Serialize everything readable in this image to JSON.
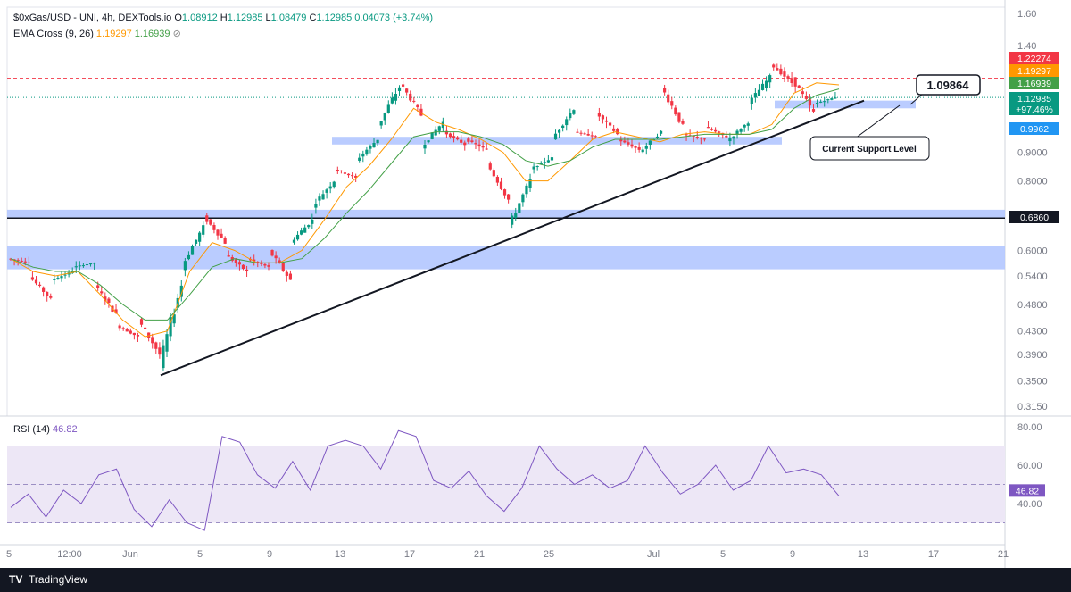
{
  "header": {
    "symbol": "$0xGas/USD - UNI, 4h, DEXTools.io",
    "o_label": "O",
    "o_value": "1.08912",
    "h_label": "H",
    "h_value": "1.12985",
    "l_label": "L",
    "l_value": "1.08479",
    "c_label": "C",
    "c_value": "1.12985",
    "change": "0.04073 (+3.74%)",
    "ema_label": "EMA Cross (9, 26)",
    "ema_fast": "1.19297",
    "ema_slow": "1.16939",
    "ema_icon": "⊘"
  },
  "rsi_header": {
    "label": "RSI (14)",
    "value": "46.82"
  },
  "annotations": {
    "callout_value": "1.09864",
    "support_label": "Current Support Level"
  },
  "footer": {
    "logo": "TV",
    "name": "TradingView"
  },
  "colors": {
    "up": "#089981",
    "down": "#f23645",
    "ema_fast": "#ff9800",
    "ema_slow": "#43a047",
    "zone": "#b3c7ff",
    "rsi": "#7e57c2",
    "rsi_band": "#ede7f6"
  },
  "chart_data": {
    "type": "candlestick",
    "price_axis_labels": [
      "1.60",
      "1.40",
      "0.9000",
      "0.8000",
      "0.6000",
      "0.5400",
      "0.4800",
      "0.4300",
      "0.3900",
      "0.3500",
      "0.3150"
    ],
    "price_badges": [
      {
        "value": "1.22274",
        "color": "#f23645"
      },
      {
        "value": "1.19297",
        "color": "#ff9800"
      },
      {
        "value": "1.16939",
        "color": "#43a047"
      },
      {
        "value": "1.12985",
        "color": "#089981"
      },
      {
        "value": "+97.46%",
        "color": "#089981"
      },
      {
        "value": "0.9962",
        "color": "#2196f3"
      },
      {
        "value": "0.6860",
        "color": "#131722"
      }
    ],
    "time_axis_labels": [
      "5",
      "12:00",
      "Jun",
      "5",
      "9",
      "13",
      "17",
      "21",
      "25",
      "Jul",
      "5",
      "9",
      "13",
      "17",
      "21"
    ],
    "rsi_axis_labels": [
      "80.00",
      "60.00",
      "40.00"
    ],
    "rsi_current_badge": "46.82",
    "rsi_levels": [
      70,
      50,
      30
    ],
    "support_zones": [
      {
        "low": 0.555,
        "high": 0.612
      },
      {
        "low": 0.686,
        "high": 0.71
      },
      {
        "low": 0.93,
        "high": 0.96
      },
      {
        "low": 1.08,
        "high": 1.115
      }
    ],
    "resistance_line": 1.22274,
    "current_price_line": 1.12985,
    "horizontal_level": 0.686,
    "trendline": {
      "start": {
        "x": "Jun 3",
        "y": 0.358
      },
      "end": {
        "x": "Jul 12",
        "y": 1.115
      }
    },
    "price_path": [
      [
        0.58,
        0.57
      ],
      [
        0.54,
        0.49
      ],
      [
        0.53,
        0.55
      ],
      [
        0.56,
        0.57
      ],
      [
        0.52,
        0.46
      ],
      [
        0.44,
        0.42
      ],
      [
        0.45,
        0.39
      ],
      [
        0.37,
        0.52
      ],
      [
        0.56,
        0.66
      ],
      [
        0.69,
        0.62
      ],
      [
        0.59,
        0.55
      ],
      [
        0.58,
        0.56
      ],
      [
        0.6,
        0.53
      ],
      [
        0.62,
        0.68
      ],
      [
        0.72,
        0.8
      ],
      [
        0.84,
        0.81
      ],
      [
        0.87,
        0.95
      ],
      [
        1.0,
        1.18
      ],
      [
        1.2,
        1.05
      ],
      [
        0.92,
        1.02
      ],
      [
        0.98,
        0.93
      ],
      [
        0.95,
        0.91
      ],
      [
        0.86,
        0.74
      ],
      [
        0.66,
        0.8
      ],
      [
        0.84,
        0.88
      ],
      [
        0.95,
        1.08
      ],
      [
        0.98,
        0.96
      ],
      [
        1.06,
        0.97
      ],
      [
        0.95,
        0.91
      ],
      [
        0.9,
        0.98
      ],
      [
        1.18,
        1.0
      ],
      [
        0.97,
        0.95
      ],
      [
        1.0,
        0.96
      ],
      [
        0.94,
        1.02
      ],
      [
        1.1,
        1.23
      ],
      [
        1.3,
        1.2
      ],
      [
        1.22,
        1.06
      ],
      [
        1.1,
        1.13
      ]
    ],
    "ema_fast_path": [
      0.58,
      0.55,
      0.54,
      0.55,
      0.5,
      0.45,
      0.42,
      0.43,
      0.55,
      0.62,
      0.6,
      0.57,
      0.57,
      0.6,
      0.68,
      0.78,
      0.85,
      0.95,
      1.08,
      1.02,
      0.99,
      0.95,
      0.9,
      0.8,
      0.8,
      0.87,
      0.95,
      0.98,
      0.96,
      0.94,
      0.97,
      0.98,
      0.97,
      0.97,
      1.01,
      1.15,
      1.2,
      1.19
    ],
    "ema_slow_path": [
      0.58,
      0.56,
      0.55,
      0.55,
      0.52,
      0.48,
      0.45,
      0.45,
      0.5,
      0.56,
      0.58,
      0.57,
      0.57,
      0.58,
      0.63,
      0.7,
      0.77,
      0.86,
      0.96,
      0.98,
      0.98,
      0.96,
      0.93,
      0.87,
      0.85,
      0.87,
      0.92,
      0.95,
      0.95,
      0.95,
      0.96,
      0.97,
      0.97,
      0.97,
      0.99,
      1.08,
      1.14,
      1.17
    ],
    "rsi_path": [
      38,
      45,
      33,
      47,
      40,
      55,
      58,
      37,
      28,
      42,
      30,
      26,
      75,
      72,
      55,
      48,
      62,
      47,
      70,
      73,
      70,
      58,
      78,
      75,
      52,
      48,
      57,
      44,
      36,
      48,
      70,
      58,
      50,
      55,
      48,
      52,
      70,
      56,
      45,
      50,
      60,
      47,
      52,
      70,
      56,
      58,
      55,
      44
    ]
  }
}
